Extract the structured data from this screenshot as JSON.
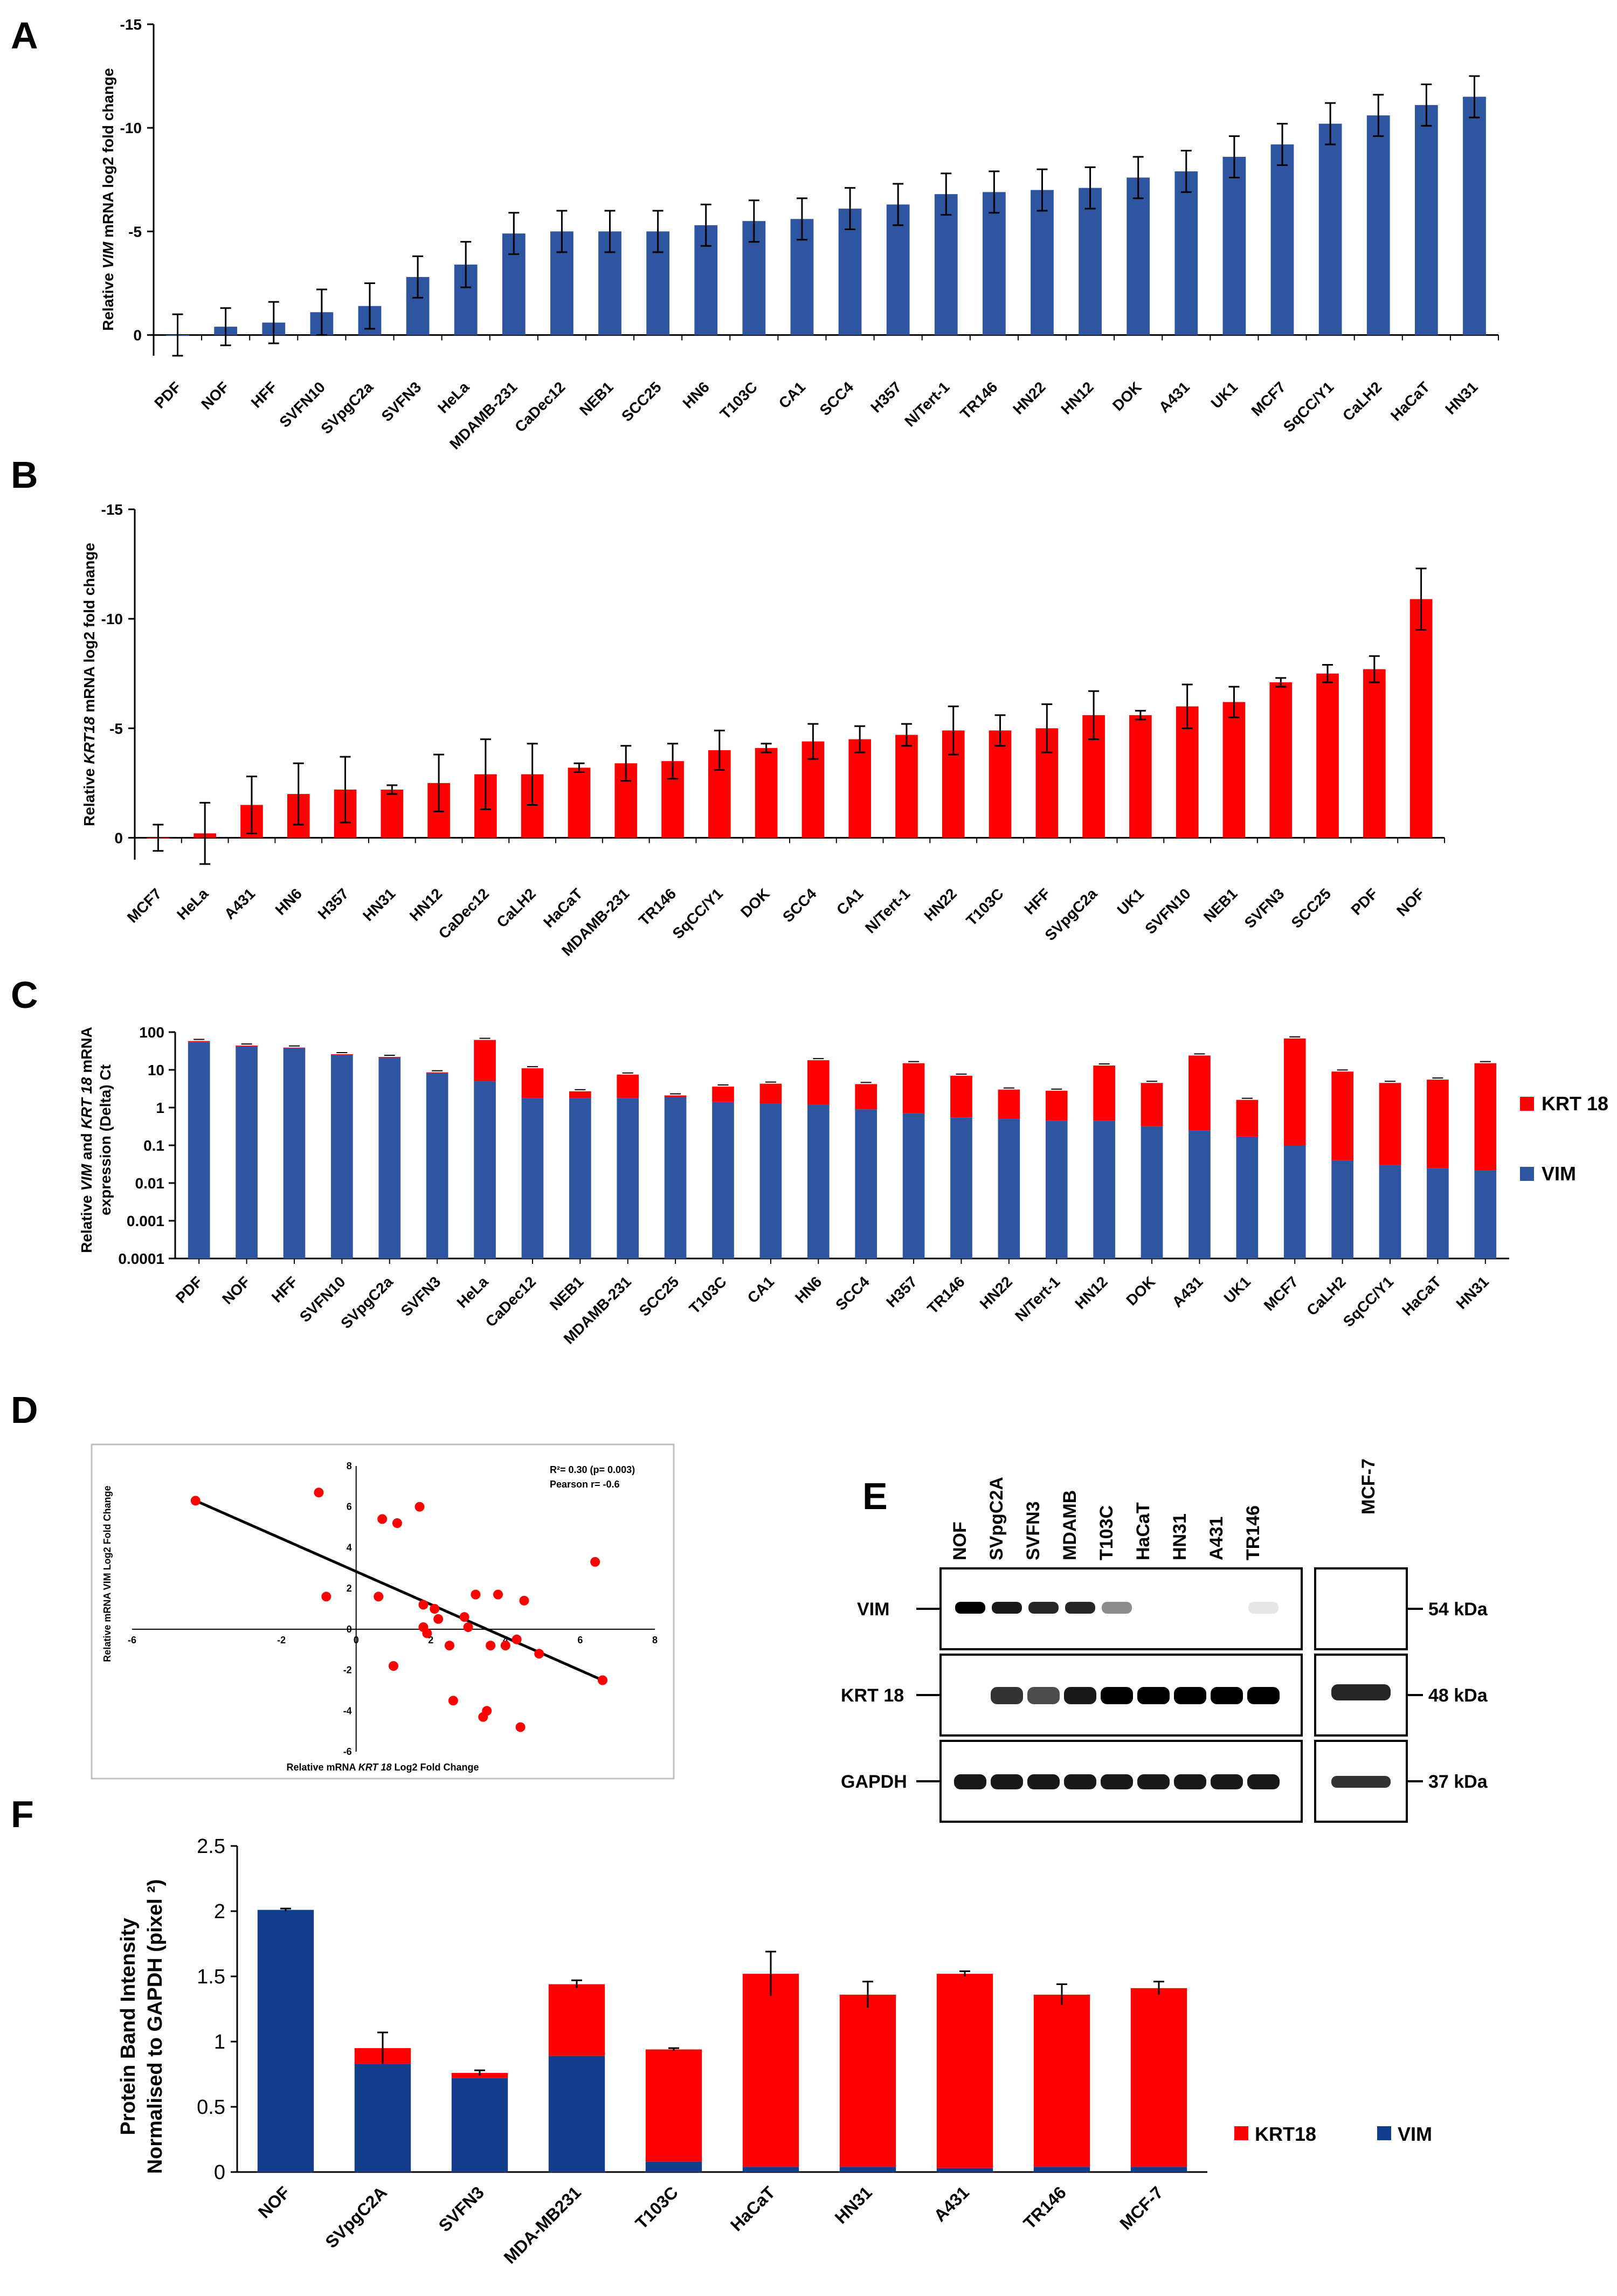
{
  "panel_labels": {
    "A": "A",
    "B": "B",
    "C": "C",
    "D": "D",
    "E": "E",
    "F": "F"
  },
  "colors": {
    "vim": "#2E56A0",
    "krt": "#FF0000",
    "vim_f": "#123D8A",
    "axis": "#000000"
  },
  "chart_data": [
    {
      "id": "A",
      "type": "bar",
      "ylabel_parts": [
        "Relative ",
        "VIM",
        " mRNA log2 fold change"
      ],
      "ylim": [
        1,
        -15
      ],
      "yticks": [
        {
          "v": -15,
          "label": "-15"
        },
        {
          "v": -10,
          "label": "-10"
        },
        {
          "v": -5,
          "label": "-5"
        },
        {
          "v": 0,
          "label": "0"
        }
      ],
      "categories": [
        "PDF",
        "NOF",
        "HFF",
        "SVFN10",
        "SVpgC2a",
        "SVFN3",
        "HeLa",
        "MDAMB-231",
        "CaDec12",
        "NEB1",
        "SCC25",
        "HN6",
        "T103C",
        "CA1",
        "SCC4",
        "H357",
        "N/Tert-1",
        "TR146",
        "HN22",
        "HN12",
        "DOK",
        "A431",
        "UK1",
        "MCF7",
        "SqCC/Y1",
        "CaLH2",
        "HaCaT",
        "HN31"
      ],
      "values": [
        0,
        -0.4,
        -0.6,
        -1.1,
        -1.4,
        -2.8,
        -3.4,
        -4.9,
        -5.0,
        -5.0,
        -5.0,
        -5.3,
        -5.5,
        -5.6,
        -6.1,
        -6.3,
        -6.8,
        -6.9,
        -7.0,
        -7.1,
        -7.6,
        -7.9,
        -8.6,
        -9.2,
        -10.2,
        -10.6,
        -11.1,
        -11.5
      ],
      "errors": [
        1.0,
        0.9,
        1.0,
        1.1,
        1.1,
        1.0,
        1.1,
        1.0,
        1.0,
        1.0,
        1.0,
        1.0,
        1.0,
        1.0,
        1.0,
        1.0,
        1.0,
        1.0,
        1.0,
        1.0,
        1.0,
        1.0,
        1.0,
        1.0,
        1.0,
        1.0,
        1.0,
        1.0
      ],
      "color": "#2E56A0"
    },
    {
      "id": "B",
      "type": "bar",
      "ylabel_parts": [
        "Relative ",
        "KRT18",
        " mRNA log2 fold change"
      ],
      "ylim": [
        1,
        -15
      ],
      "yticks": [
        {
          "v": -15,
          "label": "-15"
        },
        {
          "v": -10,
          "label": "-10"
        },
        {
          "v": -5,
          "label": "-5"
        },
        {
          "v": 0,
          "label": "0"
        }
      ],
      "categories": [
        "MCF7",
        "HeLa",
        "A431",
        "HN6",
        "H357",
        "HN31",
        "HN12",
        "CaDec12",
        "CaLH2",
        "HaCaT",
        "MDAMB-231",
        "TR146",
        "SqCC/Y1",
        "DOK",
        "SCC4",
        "CA1",
        "N/Tert-1",
        "HN22",
        "T103C",
        "HFF",
        "SVpgC2a",
        "UK1",
        "SVFN10",
        "NEB1",
        "SVFN3",
        "SCC25",
        "PDF",
        "NOF"
      ],
      "values": [
        0,
        -0.2,
        -1.5,
        -2.0,
        -2.2,
        -2.2,
        -2.5,
        -2.9,
        -2.9,
        -3.2,
        -3.4,
        -3.5,
        -4.0,
        -4.1,
        -4.4,
        -4.5,
        -4.7,
        -4.9,
        -4.9,
        -5.0,
        -5.6,
        -5.6,
        -6.0,
        -6.2,
        -7.1,
        -7.5,
        -7.7,
        -10.9
      ],
      "errors": [
        0.6,
        1.4,
        1.3,
        1.4,
        1.5,
        0.2,
        1.3,
        1.6,
        1.4,
        0.2,
        0.8,
        0.8,
        0.9,
        0.2,
        0.8,
        0.6,
        0.5,
        1.1,
        0.7,
        1.1,
        1.1,
        0.2,
        1.0,
        0.7,
        0.2,
        0.4,
        0.6,
        1.4
      ],
      "color": "#FF0000"
    },
    {
      "id": "C",
      "type": "bar",
      "stacked": true,
      "yscale": "log",
      "ylabel_parts": [
        "Relative ",
        "VIM",
        " and ",
        "KRT 18",
        " mRNA"
      ],
      "ylabel2": "expression (Delta) Ct",
      "ylim": [
        0.0001,
        100
      ],
      "yticks": [
        "100",
        "10",
        "1",
        "0.1",
        "0.01",
        "0.001",
        "0.0001"
      ],
      "categories": [
        "PDF",
        "NOF",
        "HFF",
        "SVFN10",
        "SVpgC2a",
        "SVFN3",
        "HeLa",
        "CaDec12",
        "NEB1",
        "MDAMB-231",
        "SCC25",
        "T103C",
        "CA1",
        "HN6",
        "SCC4",
        "H357",
        "TR146",
        "HN22",
        "N/Tert-1",
        "HN12",
        "DOK",
        "A431",
        "UK1",
        "MCF7",
        "CaLH2",
        "SqCC/Y1",
        "HaCaT",
        "HN31"
      ],
      "series": [
        {
          "name": "VIM",
          "values": [
            55,
            42,
            38,
            25,
            21,
            8.3,
            5,
            1.8,
            1.8,
            1.8,
            1.9,
            1.4,
            1.3,
            1.2,
            0.9,
            0.7,
            0.55,
            0.5,
            0.45,
            0.45,
            0.32,
            0.25,
            0.17,
            0.1,
            0.04,
            0.03,
            0.025,
            0.022
          ],
          "color": "#2E56A0"
        },
        {
          "name": "KRT 18",
          "values": [
            58,
            44,
            39,
            26,
            22,
            8.6,
            62,
            11,
            2.7,
            7.5,
            2.1,
            3.6,
            4.3,
            18,
            4.2,
            15,
            7,
            3,
            2.8,
            13,
            4.5,
            24,
            1.6,
            68,
            9,
            4.5,
            5.5,
            15
          ],
          "color": "#FF0000"
        }
      ],
      "legend": [
        "KRT 18",
        "VIM"
      ]
    },
    {
      "id": "D",
      "type": "scatter",
      "xlabel_parts": [
        "Relative mRNA ",
        "KRT 18",
        " Log2 Fold Change"
      ],
      "ylabel": "Relative mRNA VIM Log2 Fold Change",
      "xlim": [
        -6,
        8
      ],
      "ylim": [
        -6,
        8
      ],
      "xticks": [
        "-6",
        "-2",
        "0",
        "2",
        "4",
        "6",
        "8"
      ],
      "yticks": [
        "8",
        "6",
        "4",
        "2",
        "0",
        "-2",
        "-4",
        "-6"
      ],
      "annotation1": "R²= 0.30 (p= 0.003)",
      "annotation2": "Pearson r= -0.6",
      "points": [
        [
          -4.3,
          6.3
        ],
        [
          -1.0,
          6.7
        ],
        [
          -0.8,
          1.6
        ],
        [
          0.6,
          1.6
        ],
        [
          0.7,
          5.4
        ],
        [
          1.1,
          5.2
        ],
        [
          1.7,
          6.0
        ],
        [
          1.8,
          1.2
        ],
        [
          1.8,
          0.1
        ],
        [
          1.9,
          -0.2
        ],
        [
          2.1,
          1.0
        ],
        [
          2.2,
          0.5
        ],
        [
          2.5,
          -0.8
        ],
        [
          2.6,
          -3.5
        ],
        [
          2.9,
          0.6
        ],
        [
          3.0,
          0.1
        ],
        [
          3.2,
          1.7
        ],
        [
          3.4,
          -4.3
        ],
        [
          3.5,
          -4.0
        ],
        [
          3.6,
          -0.8
        ],
        [
          3.8,
          1.7
        ],
        [
          4.0,
          -0.8
        ],
        [
          4.3,
          -0.5
        ],
        [
          4.5,
          1.4
        ],
        [
          4.9,
          -1.2
        ],
        [
          4.4,
          -4.8
        ],
        [
          6.4,
          3.3
        ],
        [
          6.6,
          -2.5
        ],
        [
          1.0,
          -1.8
        ]
      ],
      "fit": [
        [
          -4.3,
          6.3
        ],
        [
          6.6,
          -2.5
        ]
      ]
    },
    {
      "id": "F",
      "type": "bar",
      "stacked": true,
      "ylabel": "Protein Band Intensity",
      "ylabel2": "Normalised to GAPDH (pixel ²)",
      "ylim": [
        0,
        2.5
      ],
      "yticks": [
        {
          "v": 0,
          "label": "0"
        },
        {
          "v": 0.5,
          "label": "0.5"
        },
        {
          "v": 1,
          "label": "1"
        },
        {
          "v": 1.5,
          "label": "1.5"
        },
        {
          "v": 2,
          "label": "2"
        },
        {
          "v": 2.5,
          "label": "2.5"
        }
      ],
      "categories": [
        "NOF",
        "SVpgC2A",
        "SVFN3",
        "MDA-MB231",
        "T103C",
        "HaCaT",
        "HN31",
        "A431",
        "TR146",
        "MCF-7"
      ],
      "series": [
        {
          "name": "VIM",
          "values": [
            2.01,
            0.83,
            0.72,
            0.89,
            0.08,
            0.04,
            0.04,
            0.03,
            0.04,
            0.04
          ],
          "color": "#123D8A"
        },
        {
          "name": "KRT18",
          "values": [
            0.0,
            0.12,
            0.04,
            0.55,
            0.86,
            1.48,
            1.32,
            1.49,
            1.32,
            1.37
          ],
          "color": "#FF0000"
        }
      ],
      "errors_total": [
        0.01,
        0.12,
        0.02,
        0.03,
        0.01,
        0.17,
        0.1,
        0.02,
        0.08,
        0.05
      ],
      "legend": [
        "KRT18",
        "VIM"
      ]
    }
  ],
  "blot": {
    "lanes": [
      "NOF",
      "SVpgC2A",
      "SVFN3",
      "MDAMB",
      "T103C",
      "HaCaT",
      "HN31",
      "A431",
      "TR146"
    ],
    "extra_lane": "MCF-7",
    "rows": [
      "VIM",
      "KRT 18",
      "GAPDH"
    ],
    "sizes": [
      "54 kDa",
      "48 kDa",
      "37 kDa"
    ]
  }
}
